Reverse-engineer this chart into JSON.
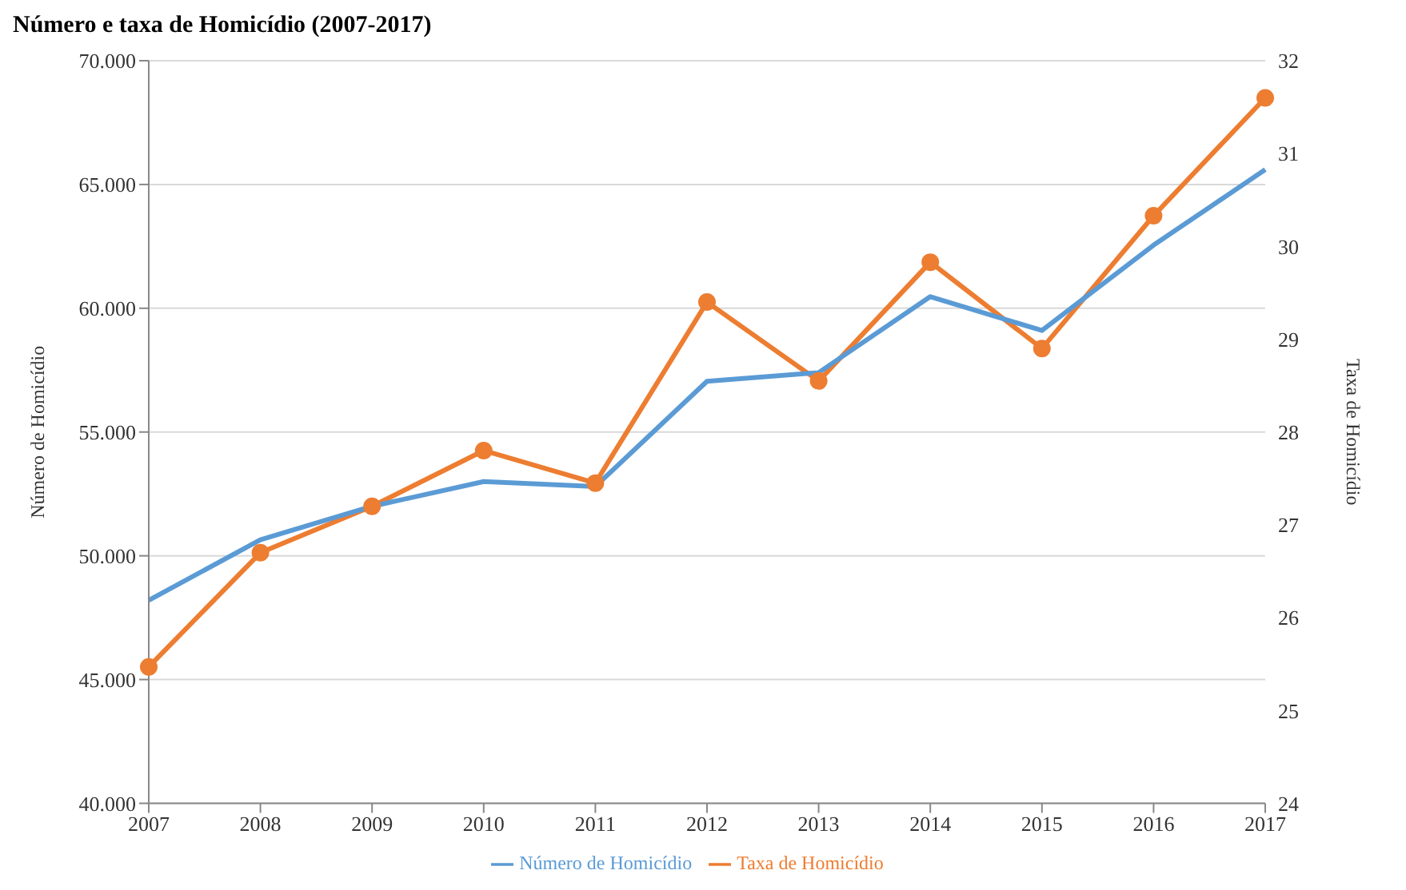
{
  "chart_data": {
    "type": "line",
    "title": "Número e taxa de Homicídio (2007-2017)",
    "ylabel": "Número de Homicídio",
    "y2label": "Taxa de Homicídio",
    "categories": [
      "2007",
      "2008",
      "2009",
      "2010",
      "2011",
      "2012",
      "2013",
      "2014",
      "2015",
      "2016",
      "2017"
    ],
    "series": [
      {
        "name": "Número de Homicídio",
        "color": "#5b9bd5",
        "marker": "none",
        "values": [
          48200,
          50650,
          52000,
          53000,
          52800,
          57050,
          57400,
          60470,
          59100,
          62550,
          65600
        ]
      },
      {
        "name": "Taxa de Homicídio",
        "color": "#ed7d31",
        "marker": "circle",
        "axis": "y2",
        "values": [
          25.47,
          26.7,
          27.2,
          27.8,
          27.45,
          29.4,
          28.55,
          29.83,
          28.9,
          30.33,
          31.6
        ]
      }
    ],
    "ylim": [
      40000,
      70000
    ],
    "yticks": [
      {
        "value": 40000,
        "label": "40.000"
      },
      {
        "value": 45000,
        "label": "45.000"
      },
      {
        "value": 50000,
        "label": "50.000"
      },
      {
        "value": 55000,
        "label": "55.000"
      },
      {
        "value": 60000,
        "label": "60.000"
      },
      {
        "value": 65000,
        "label": "65.000"
      },
      {
        "value": 70000,
        "label": "70.000"
      }
    ],
    "y2lim": [
      24,
      32
    ],
    "y2ticks": [
      24,
      25,
      26,
      27,
      28,
      29,
      30,
      31,
      32
    ],
    "grid": "y",
    "legend": "bottom",
    "line_style": "solid"
  }
}
